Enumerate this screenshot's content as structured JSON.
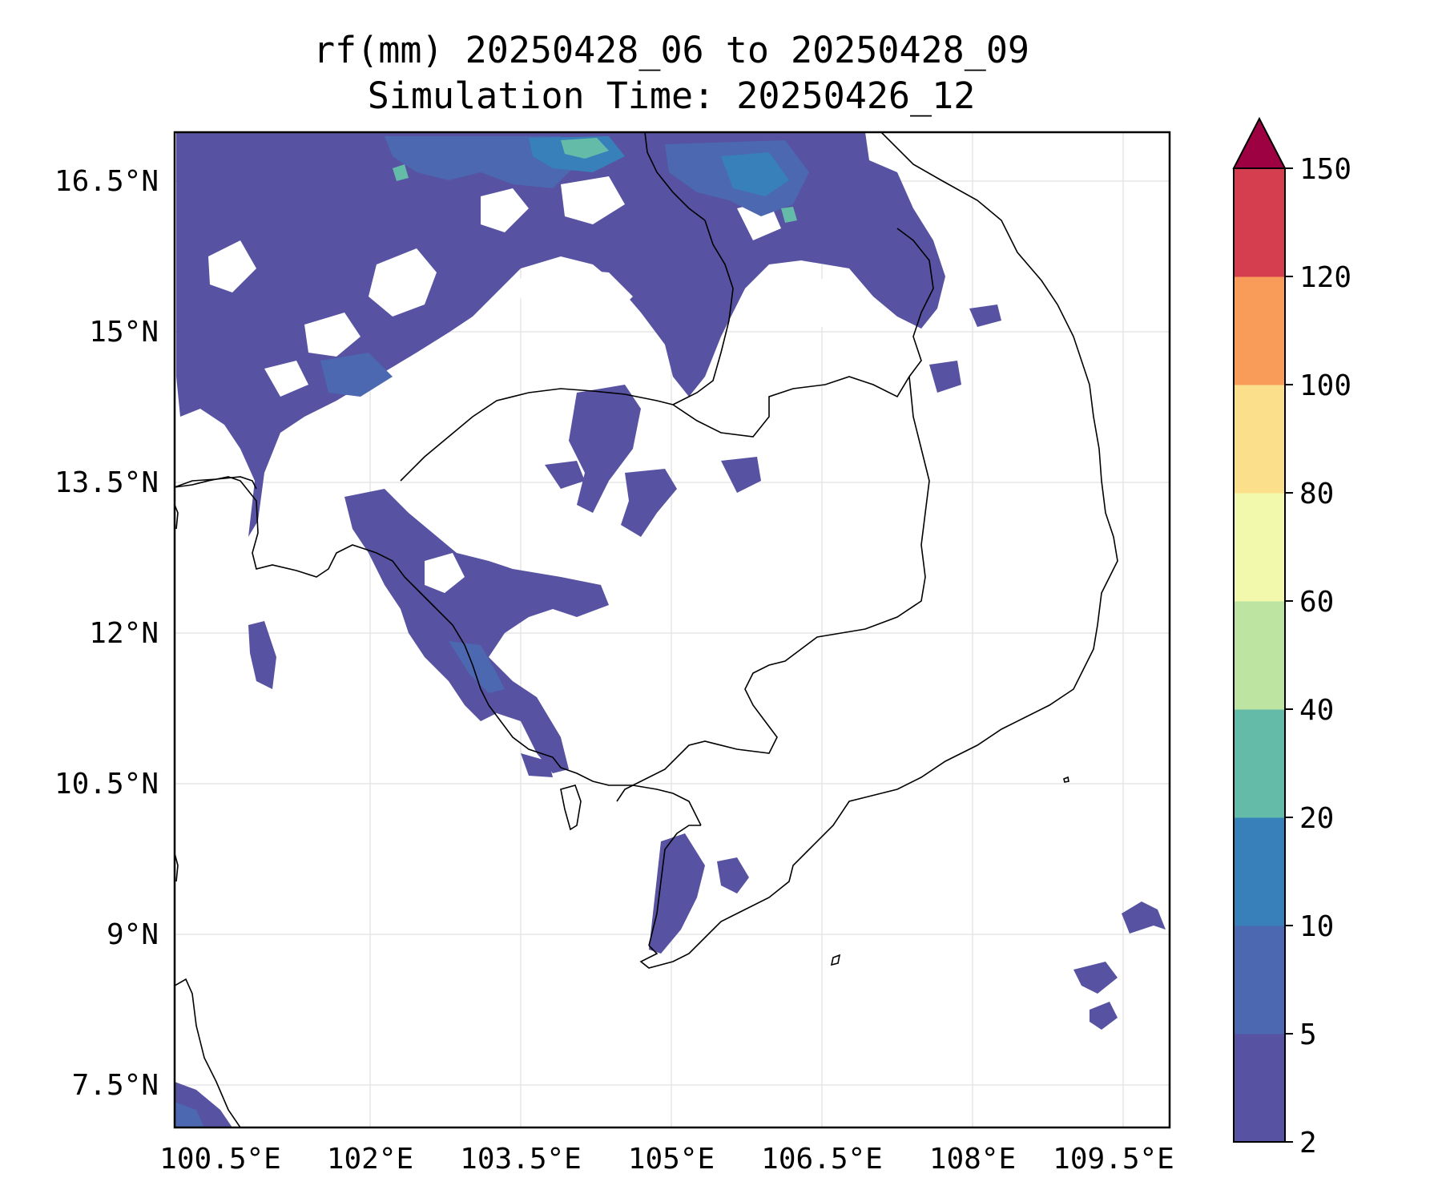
{
  "title": {
    "line1": "rf(mm) 20250428_06 to 20250428_09",
    "line2": "Simulation Time: 20250426_12"
  },
  "map": {
    "lat_ticks": [
      "16.5°N",
      "15°N",
      "13.5°N",
      "12°N",
      "10.5°N",
      "9°N",
      "7.5°N"
    ],
    "lon_ticks": [
      "100.5°E",
      "102°E",
      "103.5°E",
      "105°E",
      "106.5°E",
      "108°E",
      "109.5°E"
    ],
    "lon_range": [
      100.5,
      110.4
    ],
    "lat_range": [
      7.0,
      16.9
    ],
    "gridlines": true,
    "coastline_color": "#000000"
  },
  "colorbar": {
    "levels": [
      "2",
      "5",
      "10",
      "20",
      "40",
      "60",
      "80",
      "100",
      "120",
      "150"
    ],
    "colors": [
      "#5752a1",
      "#4b68b0",
      "#3880ba",
      "#64bba8",
      "#bde4a0",
      "#f2f9ad",
      "#fcdf8a",
      "#fa9c59",
      "#d53e4f",
      "#9e0142"
    ],
    "extend": "max"
  }
}
